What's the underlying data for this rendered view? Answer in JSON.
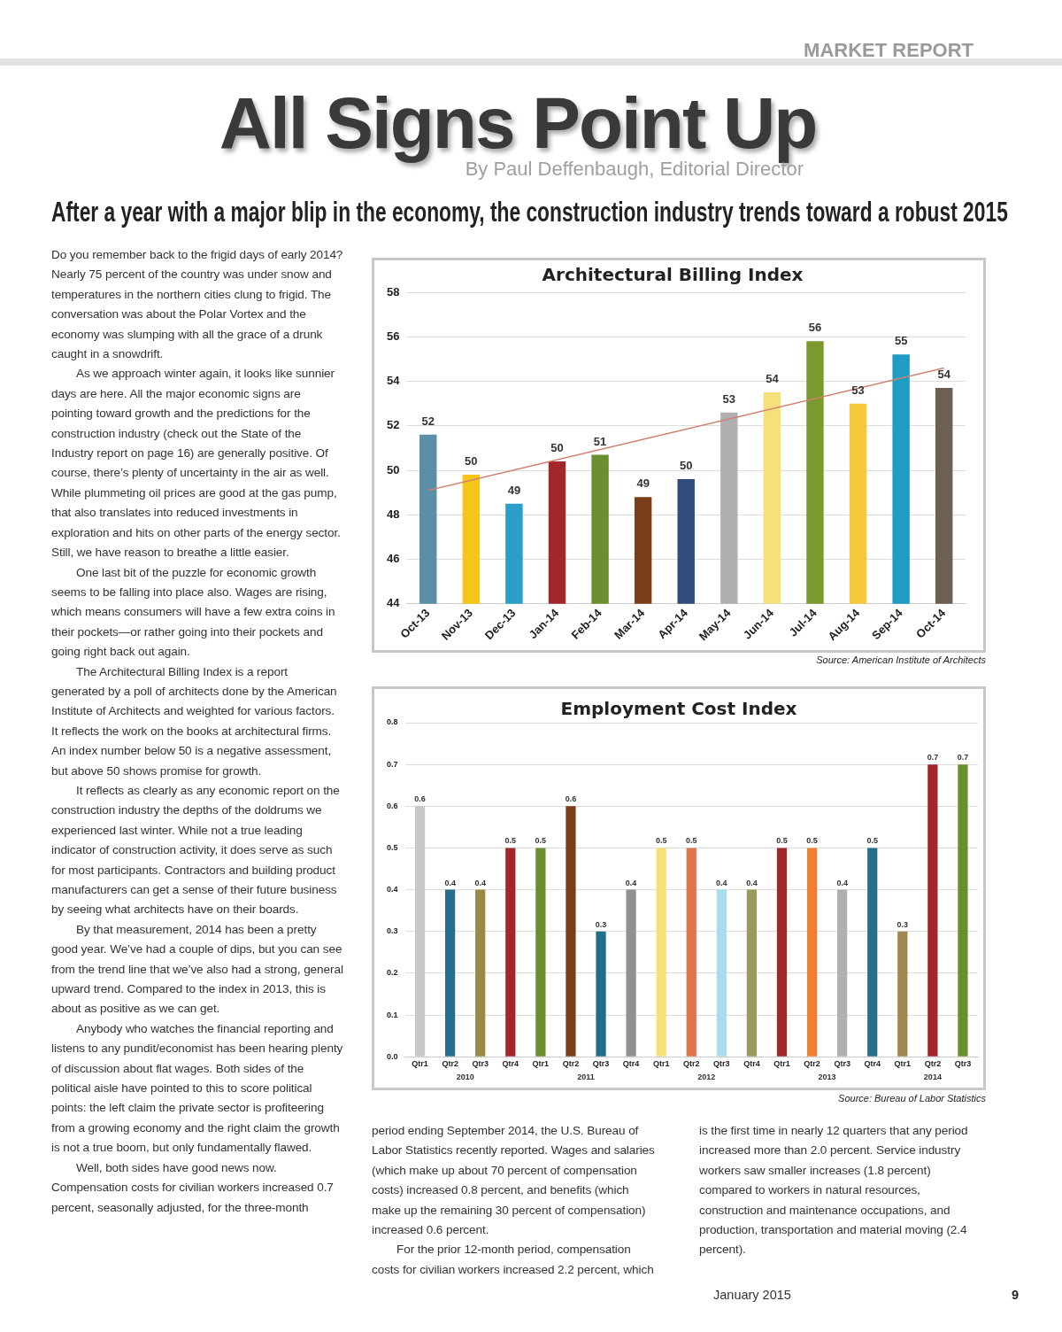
{
  "chart_data": [
    {
      "type": "bar",
      "title": "Architectural Billing Index",
      "categories": [
        "Oct-13",
        "Nov-13",
        "Dec-13",
        "Jan-14",
        "Feb-14",
        "Mar-14",
        "Apr-14",
        "May-14",
        "Jun-14",
        "Jul-14",
        "Aug-14",
        "Sep-14",
        "Oct-14"
      ],
      "series": [
        {
          "type": "bar",
          "colors": [
            "#5b8fa8",
            "#f5c518",
            "#2a9fc9",
            "#a3262a",
            "#6a8f2f",
            "#7a3f1a",
            "#324a7c",
            "#b0b0b0",
            "#f7e07a",
            "#7a9a2e",
            "#f5c93a",
            "#1f9cc4",
            "#6e5f52"
          ],
          "values": [
            51.6,
            49.8,
            48.5,
            50.4,
            50.7,
            48.8,
            49.6,
            52.6,
            53.5,
            55.8,
            53.0,
            55.2,
            53.7
          ],
          "value_labels": [
            "52",
            "50",
            "49",
            "50",
            "51",
            "49",
            "50",
            "53",
            "54",
            "56",
            "53",
            "55",
            "54"
          ]
        },
        {
          "type": "line",
          "color": "#d08070",
          "x": [
            "Oct-13",
            "Oct-14"
          ],
          "values": [
            49.1,
            54.6
          ]
        }
      ],
      "ylim": [
        44,
        58
      ],
      "yticks": [
        44,
        46,
        48,
        50,
        52,
        54,
        56,
        58
      ],
      "grid": "y",
      "annotations": [
        "MARKET REPORT",
        "All Signs Point Up",
        "By Paul Deffenbaugh, Editorial Director",
        "After a year with a major blip in the economy, the construction industry trends toward a robust 2015",
        "Source: American Institute of Architects",
        "Do you remember back to the frigid days of early 2014? Nearly 75 percent of the country was under snow and temperatures in the northern cities clung to frigid. The conversation was about the Polar Vortex and the economy was slumping with all the grace of a drunk caught in a snowdrift.",
        "As we approach winter again, it looks like sunnier days are here. All the major economic signs are pointing toward growth and the predictions for the construction industry (check out the State of the Industry report on page 16) are generally positive. Of course, there’s plenty of uncertainty in the air as well. While plummeting oil prices are good at the gas pump, that also translates into reduced investments in exploration and hits on other parts of the energy sector. Still, we have reason to breathe a little easier.",
        "One last bit of the puzzle for economic growth seems to be falling into place also. Wages are rising, which means consumers will have a few extra coins in their pockets—or rather going into their pockets and going right back out again.",
        "The Architectural Billing Index is a report generated by a poll of architects done by the American Institute of Architects and weighted for various factors. It reflects the work on the books at architectural firms. An index number below 50 is a negative assessment, but above 50 shows promise for growth.",
        "It reflects as clearly as any economic report on the construction industry the depths of the doldrums we experienced last winter. While not a true leading indicator of construction activity, it does serve as such for most participants. Contractors and building product manufacturers can get a sense of their future business by seeing what architects have on their boards.",
        "By that measurement, 2014 has been a pretty good year. We’ve had a couple of dips, but you can see from the trend line that we’ve also had a strong, general upward trend. Compared to the index in 2013, this is about as positive as we can get.",
        "Anybody who watches the financial reporting and listens to any pundit/economist has been hearing plenty of discussion about flat wages. Both sides of the political aisle have pointed to this to score political points: the left claim the private sector is profiteering from a growing economy and the right claim the growth is not a true boom, but only fundamentally flawed.",
        "Well, both sides have good news now. Compensation costs for civilian workers increased 0.7 percent, seasonally adjusted, for the three-month",
        "period ending September 2014, the U.S. Bureau of Labor Statistics recently reported. Wages and salaries (which make up about 70 percent of compensation costs) increased 0.8 percent, and benefits (which make up the remaining 30 percent of compensation) increased 0.6 percent.",
        "For the prior 12-month period, compensation costs for civilian workers increased 2.2 percent, which is the first time in nearly 12 quarters that any period increased more than 2.0 percent. Service industry workers saw smaller increases (1.8 percent) compared to workers in natural resources, construction and maintenance occupations, and production, transportation and material moving (2.4 percent).",
        "January 2015",
        "9"
      ]
    },
    {
      "type": "bar",
      "title": "Employment Cost Index",
      "categories": [
        "Qtr1",
        "Qtr2",
        "Qtr3",
        "Qtr4",
        "Qtr1",
        "Qtr2",
        "Qtr3",
        "Qtr4",
        "Qtr1",
        "Qtr2",
        "Qtr3",
        "Qtr4",
        "Qtr1",
        "Qtr2",
        "Qtr3",
        "Qtr4",
        "Qtr1",
        "Qtr2",
        "Qtr3"
      ],
      "values": [
        0.6,
        0.4,
        0.4,
        0.5,
        0.5,
        0.6,
        0.3,
        0.4,
        0.5,
        0.5,
        0.4,
        0.4,
        0.5,
        0.5,
        0.4,
        0.5,
        0.3,
        0.7,
        0.7
      ],
      "colors": [
        "#c8c8c8",
        "#256f8a",
        "#9a8a48",
        "#a3262a",
        "#6a8f2f",
        "#7a3f1a",
        "#1f6f8a",
        "#909090",
        "#f7e07a",
        "#e0734a",
        "#a8dcef",
        "#9a9a5a",
        "#a3262a",
        "#f08030",
        "#b0b0b0",
        "#256f8a",
        "#a08850",
        "#a3262a",
        "#6a8f2f"
      ],
      "data_labels": true,
      "ylim": [
        0,
        0.8
      ],
      "yticks": [
        {
          "value": 0,
          "label": "0.0"
        },
        0.1,
        0.2,
        0.3,
        0.4,
        0.5,
        0.6,
        0.7,
        0.8
      ],
      "grid": "y",
      "annotations": [
        "2010",
        "2011",
        "2012",
        "2013",
        "2014",
        "Source: Bureau of Labor Statistics"
      ]
    }
  ]
}
